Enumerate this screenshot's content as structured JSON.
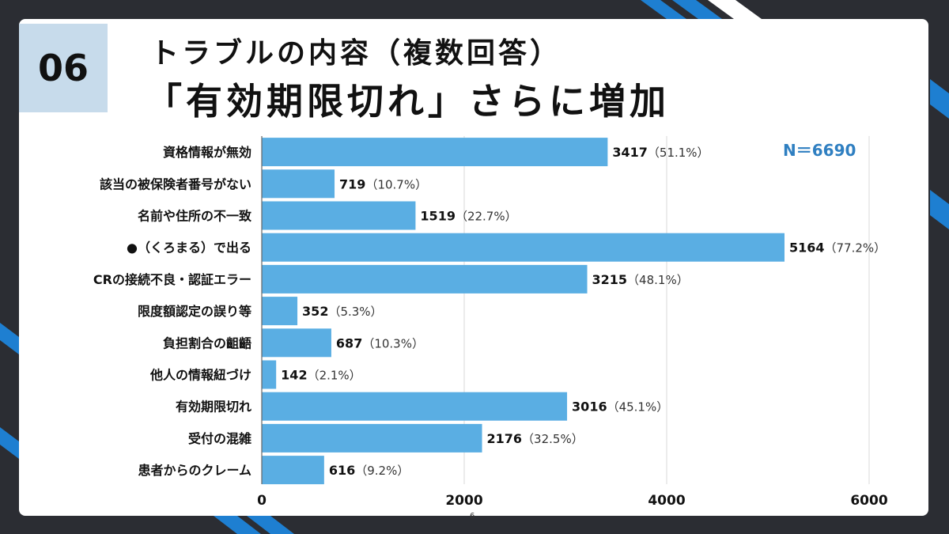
{
  "header": {
    "badge": "06",
    "title_line1": "トラブルの内容（複数回答）",
    "title_line2": "「有効期限切れ」さらに増加"
  },
  "page_number": "6",
  "colors": {
    "bar": "#5aaee3",
    "accent": "#1e7fd1",
    "background": "#2b2d33",
    "badge": "#c7dbeb",
    "n_text": "#2f7fc1"
  },
  "chart_data": {
    "type": "bar",
    "orientation": "horizontal",
    "annotation": "N＝6690",
    "categories": [
      "資格情報が無効",
      "該当の被保険者番号がない",
      "名前や住所の不一致",
      "●（くろまる）で出る",
      "CRの接続不良・認証エラー",
      "限度額認定の誤り等",
      "負担割合の齟齬",
      "他人の情報紐づけ",
      "有効期限切れ",
      "受付の混雑",
      "患者からのクレーム"
    ],
    "values": [
      3417,
      719,
      1519,
      5164,
      3215,
      352,
      687,
      142,
      3016,
      2176,
      616
    ],
    "percent_labels": [
      "（51.1%）",
      "（10.7%）",
      "（22.7%）",
      "（77.2%）",
      "（48.1%）",
      "（5.3%）",
      "（10.3%）",
      "（2.1%）",
      "（45.1%）",
      "（32.5%）",
      "（9.2%）"
    ],
    "xlim": [
      0,
      6000
    ],
    "xticks": [
      0,
      2000,
      4000,
      6000
    ],
    "grid": true
  }
}
